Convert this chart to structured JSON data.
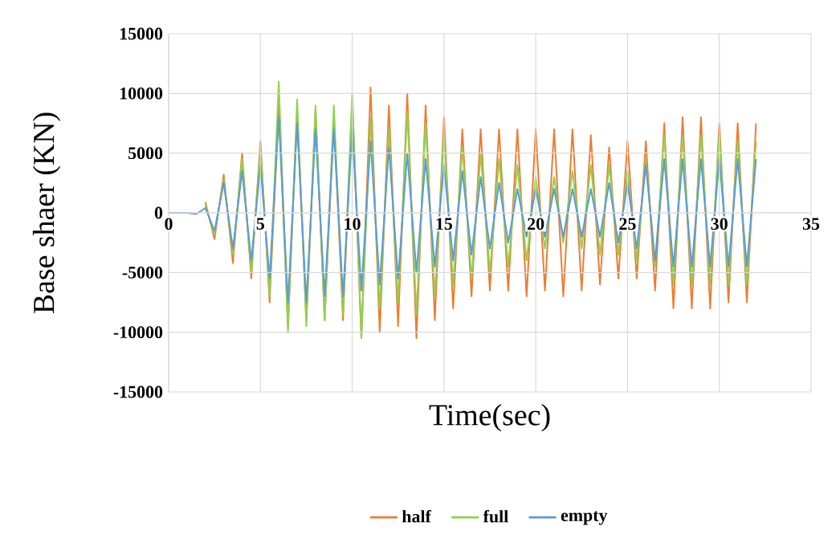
{
  "chart_data": {
    "type": "line",
    "xlabel": "Time(sec)",
    "ylabel": "Base shaer (KN)",
    "xlim": [
      0,
      35
    ],
    "ylim": [
      -15000,
      15000
    ],
    "xticks": [
      0,
      5,
      10,
      15,
      20,
      25,
      30,
      35
    ],
    "yticks": [
      -15000,
      -10000,
      -5000,
      0,
      5000,
      10000,
      15000
    ],
    "grid": true,
    "legend": "bottom",
    "x": [
      0,
      0.5,
      1,
      1.5,
      2,
      2.5,
      3,
      3.5,
      4,
      4.5,
      5,
      5.5,
      6,
      6.5,
      7,
      7.5,
      8,
      8.5,
      9,
      9.5,
      10,
      10.5,
      11,
      11.5,
      12,
      12.5,
      13,
      13.5,
      14,
      14.5,
      15,
      15.5,
      16,
      16.5,
      17,
      17.5,
      18,
      18.5,
      19,
      19.5,
      20,
      20.5,
      21,
      21.5,
      22,
      22.5,
      23,
      23.5,
      24,
      24.5,
      25,
      25.5,
      26,
      26.5,
      27,
      27.5,
      28,
      28.5,
      29,
      29.5,
      30,
      30.5,
      31,
      31.5,
      32
    ],
    "series": [
      {
        "name": "half",
        "color": "#ed7d31",
        "values": [
          null,
          null,
          null,
          null,
          900,
          -2200,
          3200,
          -4200,
          5000,
          -5500,
          6000,
          -7500,
          9000,
          -9500,
          8500,
          -9000,
          8500,
          -9000,
          8000,
          -9000,
          9500,
          -10500,
          10500,
          -10000,
          9000,
          -9500,
          10000,
          -10500,
          9000,
          -9000,
          8000,
          -8000,
          7000,
          -7000,
          7000,
          -6500,
          7000,
          -6500,
          7000,
          -7000,
          7000,
          -6500,
          7000,
          -7000,
          7000,
          -6500,
          6500,
          -6000,
          5500,
          -5500,
          6000,
          -5500,
          6000,
          -6500,
          7500,
          -8000,
          8000,
          -8000,
          8000,
          -8000,
          7500,
          -7500,
          7500,
          -7500,
          7500
        ]
      },
      {
        "name": "full",
        "color": "#92d050",
        "values": [
          null,
          null,
          null,
          null,
          600,
          -1800,
          2800,
          -3500,
          4500,
          -5000,
          5500,
          -7000,
          11000,
          -10000,
          9500,
          -9500,
          9000,
          -9000,
          9000,
          -8500,
          10000,
          -10500,
          8000,
          -8000,
          7000,
          -7500,
          8500,
          -8500,
          7500,
          -7000,
          6500,
          -6000,
          5500,
          -5500,
          5000,
          -5000,
          4500,
          -4500,
          4000,
          -4000,
          3000,
          -3000,
          3000,
          -2500,
          3500,
          -3000,
          4000,
          -3500,
          4000,
          -3500,
          3500,
          -4000,
          4500,
          -4500,
          6500,
          -6000,
          6500,
          -6000,
          6500,
          -6000,
          6500,
          -6000,
          6000,
          -6000,
          6000
        ]
      },
      {
        "name": "empty",
        "color": "#5b9bd5",
        "values": [
          0,
          0,
          0,
          -100,
          400,
          -1500,
          2500,
          -3000,
          3500,
          -4000,
          4000,
          -5500,
          8000,
          -7500,
          7500,
          -7500,
          7000,
          -7000,
          7000,
          -7000,
          7000,
          -6500,
          6000,
          -6000,
          5500,
          -5500,
          5000,
          -5000,
          4500,
          -4500,
          4000,
          -4000,
          3500,
          -3500,
          3000,
          -3000,
          2500,
          -2500,
          2000,
          -2000,
          2000,
          -2000,
          2000,
          -2000,
          2000,
          -2000,
          2000,
          -2000,
          2500,
          -2500,
          2500,
          -3000,
          4000,
          -4000,
          4500,
          -4500,
          4500,
          -4500,
          4500,
          -4500,
          4500,
          -4500,
          4500,
          -4500,
          4500
        ]
      }
    ]
  }
}
